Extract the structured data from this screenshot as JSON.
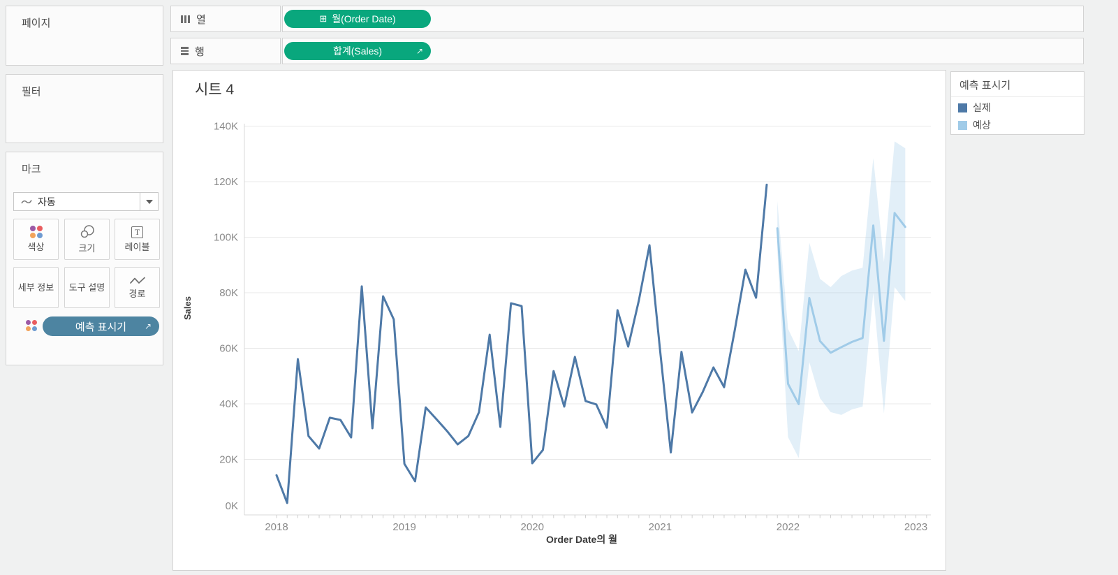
{
  "pages_shelf": {
    "label": "페이지"
  },
  "filters_shelf": {
    "label": "필터"
  },
  "columns_shelf": {
    "label": "열",
    "pill": "월(Order Date)"
  },
  "rows_shelf": {
    "label": "행",
    "pill": "합계(Sales)"
  },
  "marks_card": {
    "label": "마크",
    "mark_type_dropdown": {
      "value": "자동"
    },
    "buttons": {
      "color": "색상",
      "size": "크기",
      "label": "레이블",
      "detail": "세부 정보",
      "tooltip": "도구 설명",
      "path": "경로"
    },
    "forecast_pill": "예측 표시기",
    "dot_colors": [
      "#9c59a5",
      "#e95c5f",
      "#f2a35b",
      "#6f9bd1"
    ]
  },
  "colors": {
    "field_pill_green": "#09a77d",
    "indicator_pill_blue": "#4d84a1",
    "actual_line": "#4e79a7",
    "forecast_line": "#a0cbe8"
  },
  "legend": {
    "title": "예측 표시기",
    "items": [
      {
        "label": "실제",
        "color": "#4e79a7"
      },
      {
        "label": "예상",
        "color": "#a0cbe8"
      }
    ]
  },
  "chart_data": {
    "type": "line",
    "title": "시트 4",
    "xlabel": "Order Date의 월",
    "ylabel": "Sales",
    "unit": "thousands (K)",
    "ylim_k": [
      0,
      143
    ],
    "y_tick_step_k": 20,
    "y_ticks": [
      "0K",
      "20K",
      "40K",
      "60K",
      "80K",
      "100K",
      "120K",
      "140K"
    ],
    "x_tick_years": [
      2018,
      2019,
      2020,
      2021,
      2022,
      2023
    ],
    "grid": "horizontal",
    "legend_position": "right",
    "series": [
      {
        "name": "실제",
        "role": "actual",
        "color": "#4e79a7",
        "start_month": "2018-01",
        "values_k": [
          14.3,
          4.3,
          56.1,
          28.4,
          23.9,
          35.0,
          34.2,
          27.9,
          82.3,
          31.2,
          78.7,
          70.4,
          18.4,
          12.1,
          38.7,
          34.5,
          30.2,
          25.4,
          28.4,
          37.0,
          64.9,
          31.7,
          76.2,
          75.2,
          18.6,
          23.4,
          51.8,
          39.0,
          56.9,
          41.0,
          39.8,
          31.4,
          73.7,
          60.6,
          77.2,
          97.1,
          59.0,
          22.5,
          58.7,
          36.9,
          44.3,
          53.1,
          46.0,
          66.5,
          88.3,
          78.2,
          118.9
        ]
      },
      {
        "name": "예상",
        "role": "forecast",
        "color": "#a0cbe8",
        "start_month": "2021-12",
        "values_k": [
          103.2,
          47.2,
          39.9,
          78.1,
          62.6,
          58.4,
          60.4,
          62.3,
          63.7,
          104.2,
          62.7,
          108.7,
          103.7
        ],
        "band_upper_k": [
          113,
          67,
          59,
          98,
          85,
          82,
          86,
          88,
          89,
          128.5,
          91,
          134.5,
          132
        ],
        "band_lower_k": [
          95,
          28,
          20.5,
          55,
          42,
          37,
          36,
          38,
          39,
          80,
          36.5,
          82,
          77
        ],
        "band_color": "#a0cbe8",
        "band_opacity": 0.3
      }
    ]
  }
}
